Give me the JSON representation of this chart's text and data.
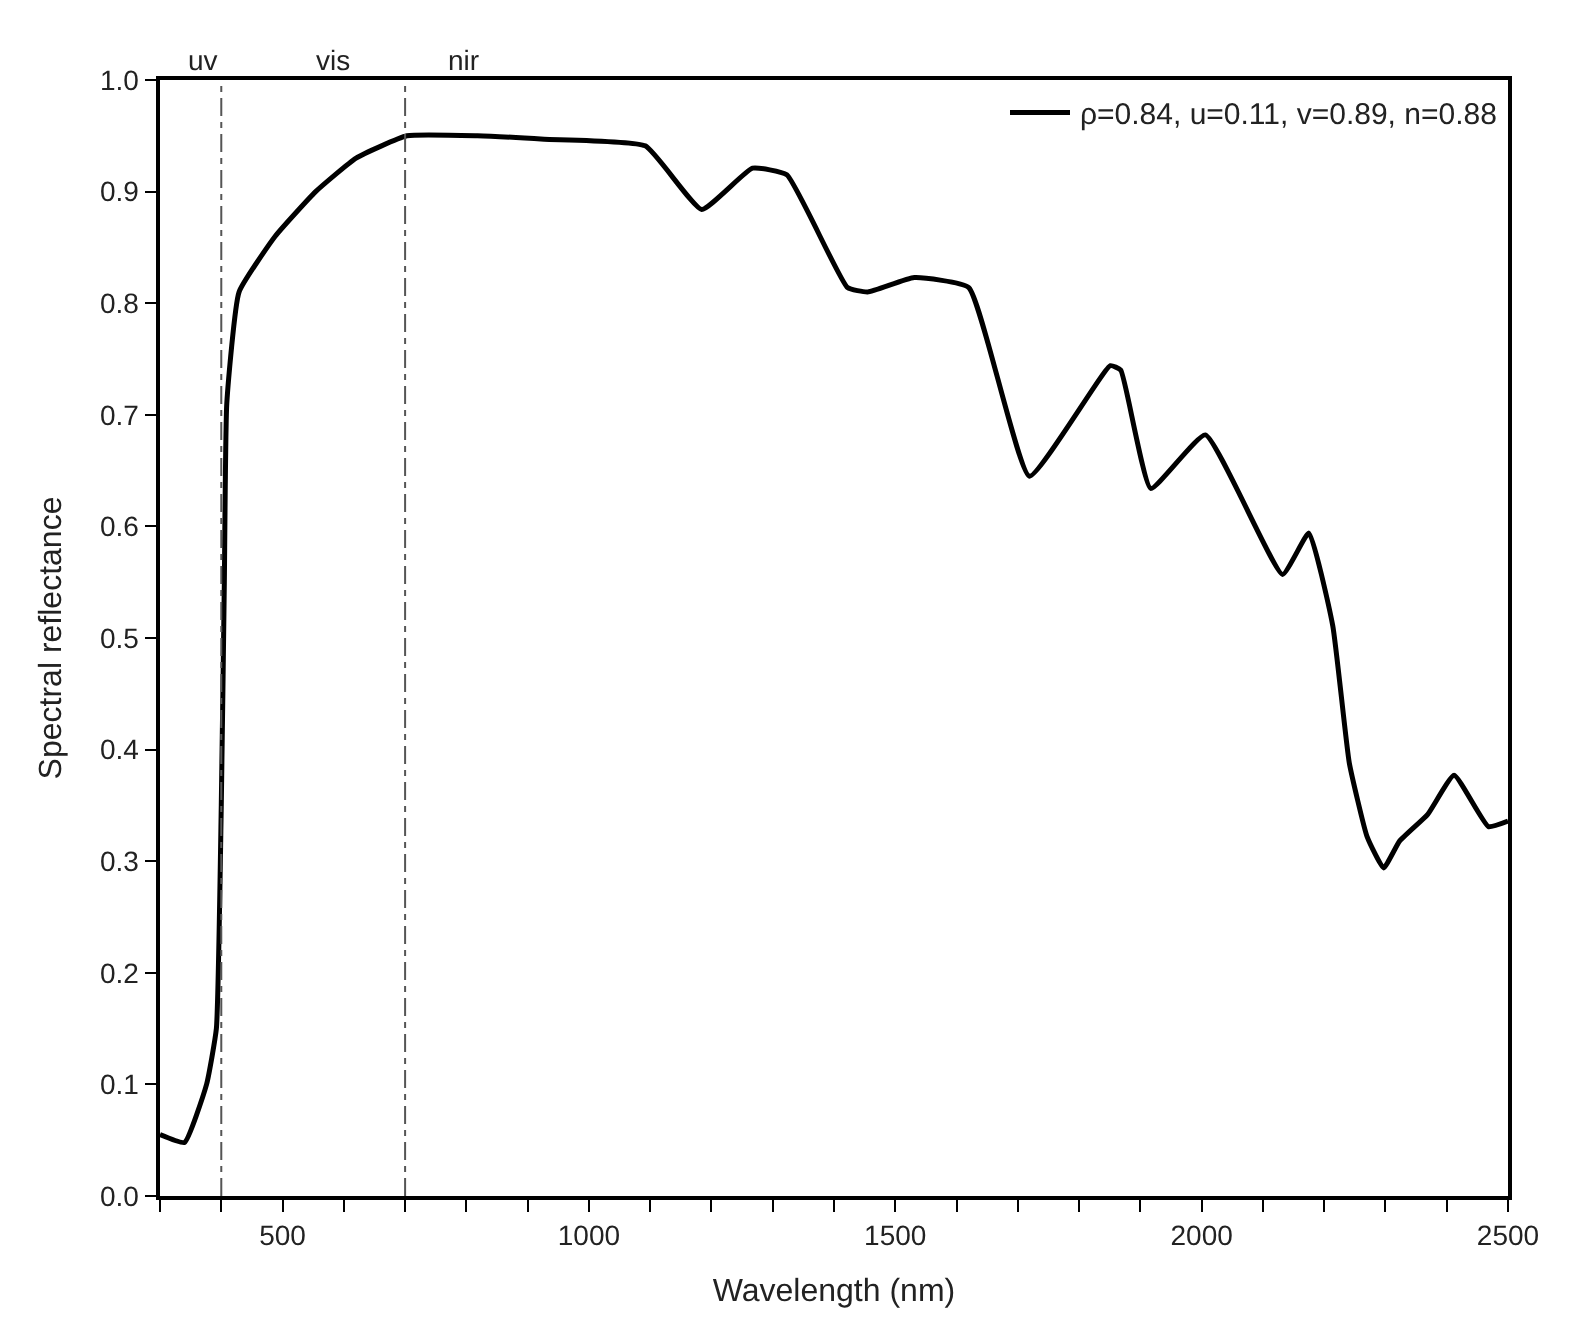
{
  "chart_data": {
    "type": "line",
    "xlabel": "Wavelength (nm)",
    "ylabel": "Spectral reflectance",
    "series": [
      {
        "name": "ρ=0.84, u=0.11, v=0.89, n=0.88",
        "color": "#000000",
        "x": [
          300,
          340,
          376,
          392,
          400,
          405,
          409,
          429,
          488,
          554,
          620,
          703,
          818,
          927,
          1092,
          1184,
          1267,
          1323,
          1422,
          1455,
          1531,
          1620,
          1719,
          1851,
          1868,
          1917,
          2006,
          2132,
          2175,
          2214,
          2241,
          2270,
          2297,
          2323,
          2369,
          2412,
          2468,
          2500
        ],
        "values": [
          0.055,
          0.048,
          0.1,
          0.15,
          0.35,
          0.55,
          0.71,
          0.81,
          0.86,
          0.9,
          0.93,
          0.95,
          0.95,
          0.947,
          0.941,
          0.884,
          0.921,
          0.915,
          0.814,
          0.81,
          0.823,
          0.814,
          0.645,
          0.744,
          0.74,
          0.634,
          0.682,
          0.557,
          0.594,
          0.511,
          0.388,
          0.322,
          0.294,
          0.318,
          0.342,
          0.377,
          0.331,
          0.336
        ]
      }
    ],
    "xlim": [
      300,
      2500
    ],
    "xticks": [
      {
        "value": 300,
        "label": null
      },
      {
        "value": 400,
        "label": null
      },
      500,
      {
        "value": 600,
        "label": null
      },
      {
        "value": 700,
        "label": null
      },
      {
        "value": 800,
        "label": null
      },
      {
        "value": 900,
        "label": null
      },
      1000,
      {
        "value": 1100,
        "label": null
      },
      {
        "value": 1200,
        "label": null
      },
      {
        "value": 1300,
        "label": null
      },
      {
        "value": 1400,
        "label": null
      },
      1500,
      {
        "value": 1600,
        "label": null
      },
      {
        "value": 1700,
        "label": null
      },
      {
        "value": 1800,
        "label": null
      },
      {
        "value": 1900,
        "label": null
      },
      2000,
      {
        "value": 2100,
        "label": null
      },
      {
        "value": 2200,
        "label": null
      },
      {
        "value": 2300,
        "label": null
      },
      {
        "value": 2400,
        "label": null
      },
      2500
    ],
    "ylim": [
      0,
      1.0
    ],
    "yticks": [
      {
        "value": 0,
        "label": "0.0"
      },
      0.1,
      0.2,
      0.3,
      0.4,
      0.5,
      0.6,
      0.7,
      0.8,
      0.9,
      {
        "value": 1.0,
        "label": "1.0"
      }
    ],
    "ref_lines": [
      {
        "axis": "x",
        "value": 400,
        "color": "#555555",
        "line_style": "dashdot"
      },
      {
        "axis": "x",
        "value": 700,
        "color": "#555555",
        "line_style": "dashdot"
      }
    ],
    "annotations": [
      "uv",
      "vis",
      "nir"
    ],
    "legend": "top right",
    "marker": "none",
    "line_style": "solid"
  }
}
